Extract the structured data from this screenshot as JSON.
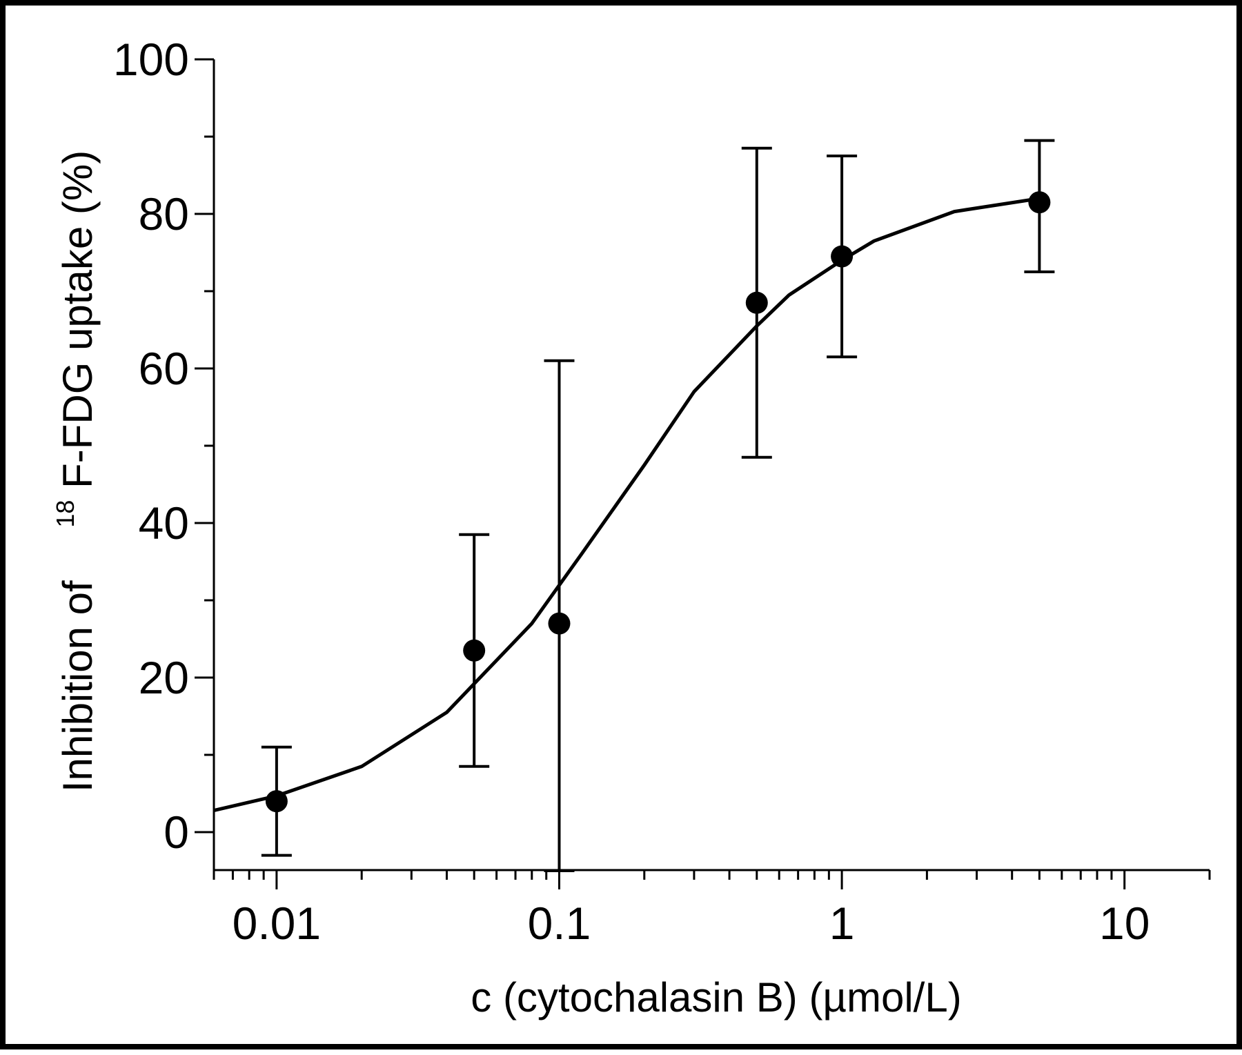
{
  "chart_data": {
    "type": "scatter",
    "xlabel": "c (cytochalasin B) (µmol/L)",
    "ylabel": {
      "prefix": "Inhibition of",
      "superscript": "18",
      "suffix": "F-FDG uptake (%)"
    },
    "x_scale": "log",
    "xlim": [
      0.006,
      20
    ],
    "ylim": [
      -5,
      100
    ],
    "x_ticks": [
      {
        "value": 0.01,
        "label": "0.01"
      },
      {
        "value": 0.1,
        "label": "0.1"
      },
      {
        "value": 1,
        "label": "1"
      },
      {
        "value": 10,
        "label": "10"
      }
    ],
    "y_ticks": [
      {
        "value": 0,
        "label": "0"
      },
      {
        "value": 20,
        "label": "20"
      },
      {
        "value": 40,
        "label": "40"
      },
      {
        "value": 60,
        "label": "60"
      },
      {
        "value": 80,
        "label": "80"
      },
      {
        "value": 100,
        "label": "100"
      }
    ],
    "y_minor_ticks": [
      10,
      30,
      50,
      70,
      90
    ],
    "grid": false,
    "series": [
      {
        "type": "scatter",
        "points": [
          {
            "x": 0.01,
            "y": 4,
            "err_low": 7,
            "err_high": 7
          },
          {
            "x": 0.05,
            "y": 23.5,
            "err_low": 15,
            "err_high": 15
          },
          {
            "x": 0.1,
            "y": 27,
            "err_low": 32,
            "err_high": 34
          },
          {
            "x": 0.5,
            "y": 68.5,
            "err_low": 20,
            "err_high": 20
          },
          {
            "x": 1,
            "y": 74.5,
            "err_low": 13,
            "err_high": 13
          },
          {
            "x": 5,
            "y": 81.5,
            "err_low": 9,
            "err_high": 8
          }
        ]
      },
      {
        "type": "line",
        "points": [
          {
            "x": 0.006,
            "y": 2.8
          },
          {
            "x": 0.01,
            "y": 4.7
          },
          {
            "x": 0.02,
            "y": 8.5
          },
          {
            "x": 0.04,
            "y": 15.5
          },
          {
            "x": 0.08,
            "y": 27
          },
          {
            "x": 0.12,
            "y": 36
          },
          {
            "x": 0.2,
            "y": 47.5
          },
          {
            "x": 0.3,
            "y": 57
          },
          {
            "x": 0.5,
            "y": 65.5
          },
          {
            "x": 0.65,
            "y": 69.5
          },
          {
            "x": 1,
            "y": 74
          },
          {
            "x": 1.3,
            "y": 76.5
          },
          {
            "x": 2.5,
            "y": 80.3
          },
          {
            "x": 5,
            "y": 82
          }
        ]
      }
    ],
    "colors": {
      "ink": "#000000",
      "background": "#ffffff"
    }
  }
}
